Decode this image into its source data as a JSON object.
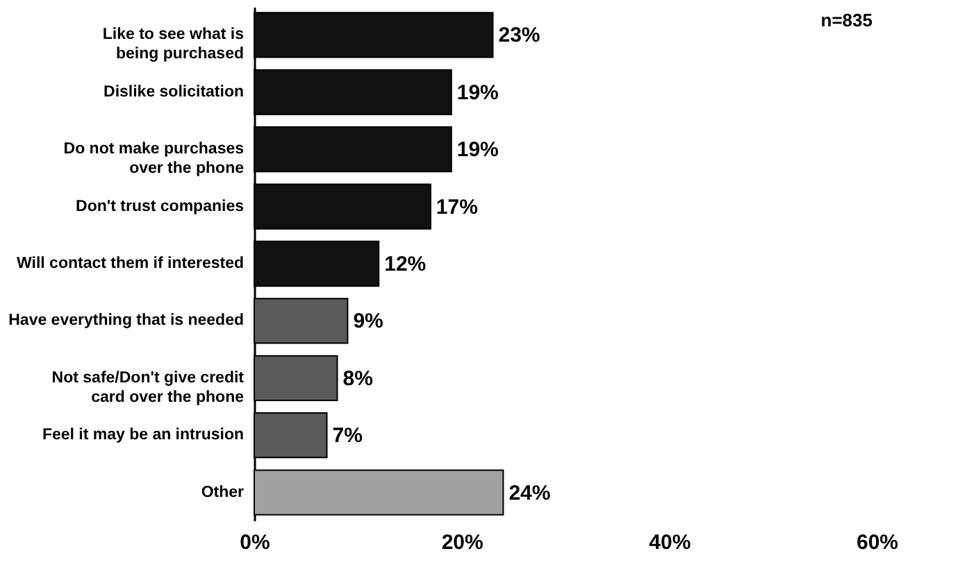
{
  "chart_data": {
    "type": "bar",
    "orientation": "horizontal",
    "categories": [
      "Like to see what is\nbeing purchased",
      "Dislike solicitation",
      "Do not make purchases\nover the phone",
      "Don't trust companies",
      "Will contact them if interested",
      "Have everything that is needed",
      "Not safe/Don't give credit\ncard over the phone",
      "Feel it may be an intrusion",
      "Other"
    ],
    "values": [
      23,
      19,
      19,
      17,
      12,
      9,
      8,
      7,
      24
    ],
    "colors": [
      "#111111",
      "#111111",
      "#111111",
      "#111111",
      "#111111",
      "#5a5a5a",
      "#5a5a5a",
      "#5a5a5a",
      "#a0a0a0"
    ],
    "value_labels": [
      "23%",
      "19%",
      "19%",
      "17%",
      "12%",
      "9%",
      "8%",
      "7%",
      "24%"
    ],
    "xlim": [
      0,
      60
    ],
    "xticks": [
      {
        "value": 0,
        "label": "0%"
      },
      {
        "value": 20,
        "label": "20%"
      },
      {
        "value": 40,
        "label": "40%"
      },
      {
        "value": 60,
        "label": "60%"
      }
    ],
    "annotations": [
      "n=835"
    ],
    "grid": false
  }
}
